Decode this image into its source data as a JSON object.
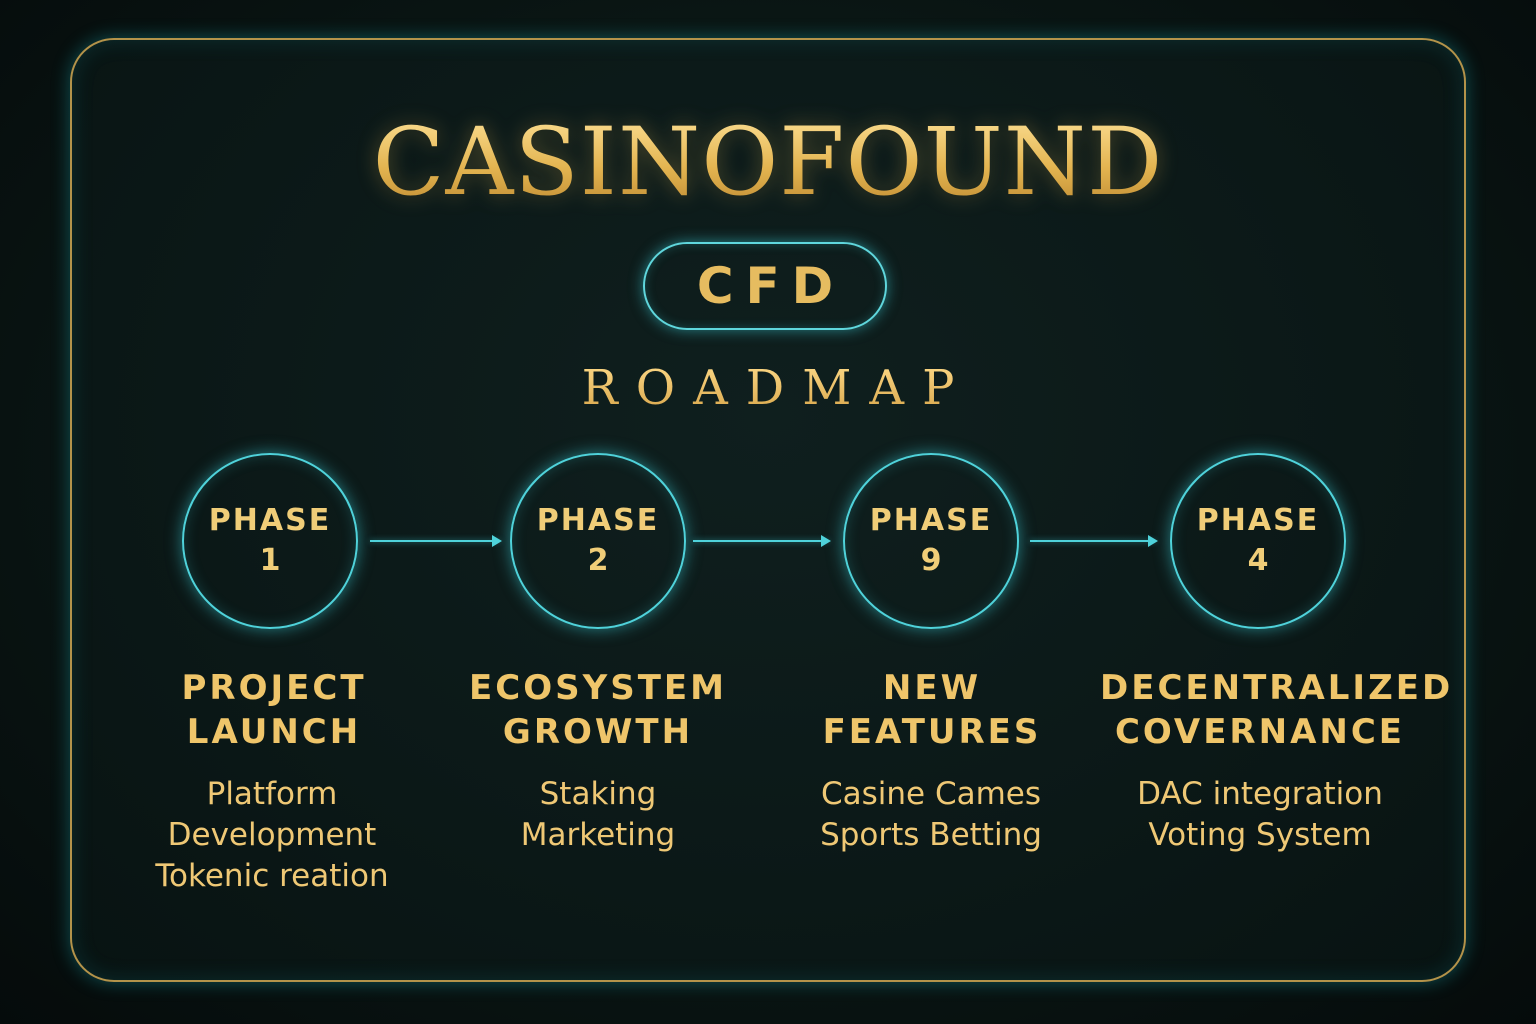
{
  "title": "CASINOFOUND",
  "ticker": "CFD",
  "subtitle": "ROADMAP",
  "colors": {
    "gold": "#e8be5e",
    "cyan": "#4fd2da",
    "background": "#0b1817"
  },
  "phases": [
    {
      "label": "PHASE",
      "number": "1",
      "heading_line1": "PROJECT",
      "heading_line2": "LAUNCH",
      "items": [
        "Platform",
        "Development",
        "Tokenic reation"
      ]
    },
    {
      "label": "PHASE",
      "number": "2",
      "heading_line1": "ECOSYSTEM",
      "heading_line2": "GROWTH",
      "items": [
        "Staking",
        "Marketing"
      ]
    },
    {
      "label": "PHASE",
      "number": "9",
      "heading_line1": "NEW",
      "heading_line2": "FEATURES",
      "items": [
        "Casine Cames",
        "Sports Betting"
      ]
    },
    {
      "label": "PHASE",
      "number": "4",
      "heading_line1": "DECENTRALIZED",
      "heading_line2": "COVERNANCE",
      "items": [
        "DAC integration",
        "Voting System"
      ]
    }
  ]
}
